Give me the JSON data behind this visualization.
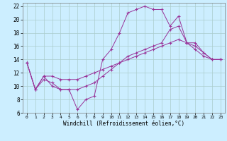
{
  "xlabel": "Windchill (Refroidissement éolien,°C)",
  "bg_color": "#cceeff",
  "grid_color": "#aacccc",
  "line_color": "#993399",
  "xlim": [
    -0.5,
    23.5
  ],
  "ylim": [
    6,
    22.5
  ],
  "xticks": [
    0,
    1,
    2,
    3,
    4,
    5,
    6,
    7,
    8,
    9,
    10,
    11,
    12,
    13,
    14,
    15,
    16,
    17,
    18,
    19,
    20,
    21,
    22,
    23
  ],
  "yticks": [
    6,
    8,
    10,
    12,
    14,
    16,
    18,
    20,
    22
  ],
  "curve1_x": [
    0,
    1,
    2,
    3,
    4,
    5,
    6,
    7,
    8,
    9,
    10,
    11,
    12,
    13,
    14,
    15,
    16,
    17,
    18,
    19,
    20,
    21,
    22,
    23
  ],
  "curve1_y": [
    13.5,
    9.5,
    11.0,
    10.5,
    9.5,
    9.5,
    6.5,
    8.0,
    8.5,
    14.0,
    15.5,
    18.0,
    21.0,
    21.5,
    22.0,
    21.5,
    21.5,
    19.0,
    20.5,
    16.5,
    16.0,
    15.0,
    14.0,
    14.0
  ],
  "curve2_x": [
    0,
    1,
    2,
    3,
    4,
    5,
    6,
    7,
    8,
    9,
    10,
    11,
    12,
    13,
    14,
    15,
    16,
    17,
    18,
    19,
    20,
    21,
    22,
    23
  ],
  "curve2_y": [
    13.5,
    9.5,
    11.5,
    10.0,
    9.5,
    9.5,
    9.5,
    10.0,
    10.5,
    11.5,
    12.5,
    13.5,
    14.5,
    15.0,
    15.5,
    16.0,
    16.5,
    18.5,
    19.0,
    16.5,
    16.5,
    15.0,
    14.0,
    14.0
  ],
  "curve3_x": [
    0,
    1,
    2,
    3,
    4,
    5,
    6,
    7,
    8,
    9,
    10,
    11,
    12,
    13,
    14,
    15,
    16,
    17,
    18,
    19,
    20,
    21,
    22,
    23
  ],
  "curve3_y": [
    13.5,
    9.5,
    11.5,
    11.5,
    11.0,
    11.0,
    11.0,
    11.5,
    12.0,
    12.5,
    13.0,
    13.5,
    14.0,
    14.5,
    15.0,
    15.5,
    16.0,
    16.5,
    17.0,
    16.5,
    15.5,
    14.5,
    14.0,
    14.0
  ],
  "xlabel_fontsize": 5.5,
  "xtick_fontsize": 4.5,
  "ytick_fontsize": 5.5
}
